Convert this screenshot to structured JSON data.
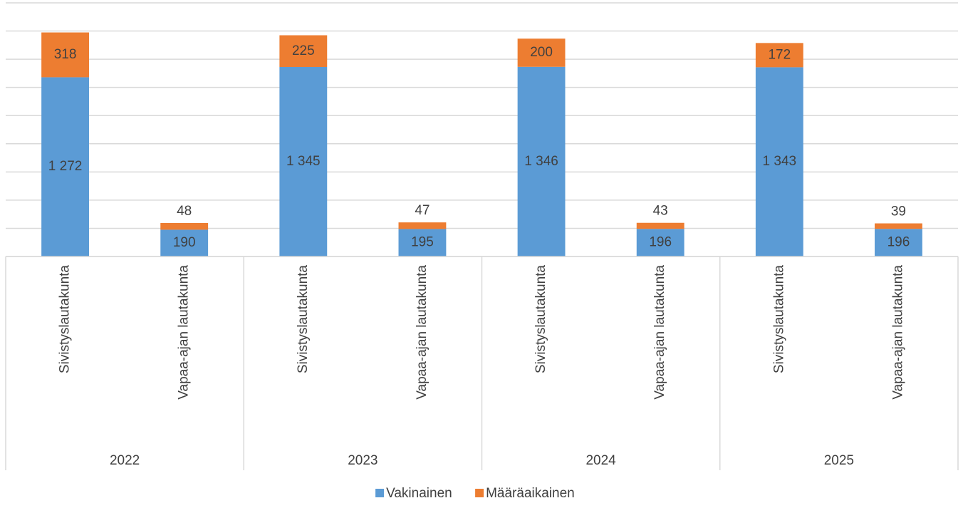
{
  "chart_data": {
    "type": "stacked_bar",
    "categories": [
      "Sivistyslautakunta",
      "Vapaa-ajan lautakunta",
      "Sivistyslautakunta",
      "Vapaa-ajan lautakunta",
      "Sivistyslautakunta",
      "Vapaa-ajan lautakunta",
      "Sivistyslautakunta",
      "Vapaa-ajan lautakunta"
    ],
    "groups": [
      "2022",
      "2023",
      "2024",
      "2025"
    ],
    "series": [
      {
        "name": "Vakinainen",
        "color": "#5b9bd5",
        "values": [
          1272,
          190,
          1345,
          195,
          1346,
          196,
          1343,
          196
        ],
        "value_labels": [
          "1 272",
          "190",
          "1 345",
          "195",
          "1 346",
          "196",
          "1 343",
          "196"
        ]
      },
      {
        "name": "Määräaikainen",
        "color": "#ed7d31",
        "values": [
          318,
          48,
          225,
          47,
          200,
          43,
          172,
          39
        ]
      }
    ],
    "ylim": [
      0,
      1800
    ],
    "yticks": [
      0,
      200,
      400,
      600,
      800,
      1000,
      1200,
      1400,
      1600,
      1800
    ],
    "grid": true,
    "legend": "bottom"
  }
}
